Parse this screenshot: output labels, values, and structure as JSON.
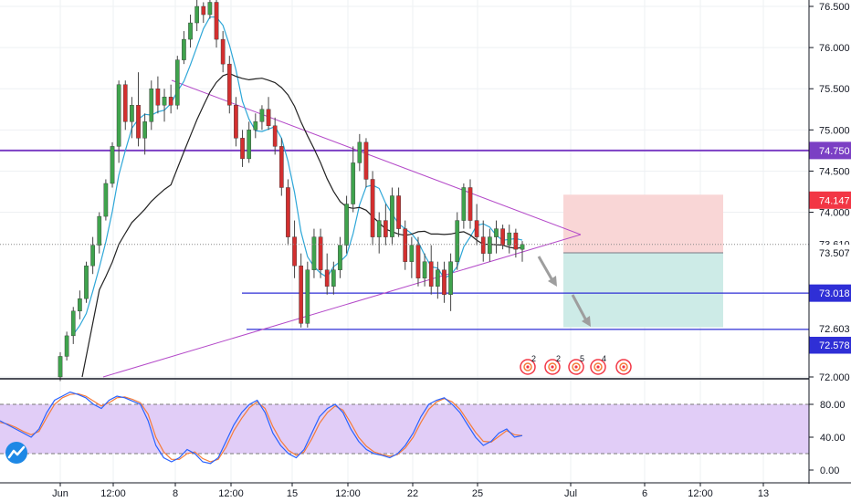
{
  "chart_data": {
    "type": "candlestick",
    "price_axis": {
      "ticks": [
        "76.500",
        "76.000",
        "75.500",
        "75.000",
        "74.500",
        "74.000",
        "72.000"
      ],
      "ylim": [
        71.95,
        76.6
      ]
    },
    "time_axis": {
      "labels": [
        "Jun",
        "12:00",
        "8",
        "12:00",
        "15",
        "12:00",
        "22",
        "25",
        "Jul",
        "6",
        "12:00",
        "13"
      ]
    },
    "horizontal_levels": [
      {
        "value": 74.75,
        "label": "74.750",
        "color": "#7b3fc4"
      },
      {
        "value": 73.018,
        "label": "73.018",
        "color": "#2f2fd6"
      },
      {
        "value": 72.578,
        "label": "72.578",
        "color": "#2f2fd6"
      }
    ],
    "price_tags": [
      {
        "value": 74.147,
        "label": "74.147",
        "color": "#f23645"
      },
      {
        "value": 73.61,
        "label": "73.610",
        "color": "#ffffff",
        "text_color": "#131722"
      },
      {
        "value": 73.507,
        "label": "73.507",
        "color": "#ffffff",
        "text_color": "#131722"
      },
      {
        "value": 72.603,
        "label": "72.603",
        "color": "#ffffff",
        "text_color": "#131722"
      }
    ],
    "risk_reward": {
      "entry": 73.507,
      "stop": 74.147,
      "target": 72.603,
      "stop_color": "#f9d6d6",
      "target_color": "#cdebe7"
    },
    "triangle": {
      "upper_trendline": [
        [
          75.62,
          0
        ],
        [
          73.72,
          1
        ]
      ],
      "lower_trendline": [
        [
          72.0,
          0
        ],
        [
          73.72,
          1
        ]
      ]
    },
    "candles": [
      [
        72.0,
        72.3,
        71.95,
        72.25
      ],
      [
        72.25,
        72.55,
        72.2,
        72.5
      ],
      [
        72.5,
        72.85,
        72.4,
        72.8
      ],
      [
        72.8,
        73.05,
        72.7,
        72.95
      ],
      [
        72.95,
        73.4,
        72.9,
        73.35
      ],
      [
        73.35,
        73.7,
        73.25,
        73.6
      ],
      [
        73.6,
        74.0,
        73.5,
        73.95
      ],
      [
        73.95,
        74.4,
        73.9,
        74.35
      ],
      [
        74.35,
        74.85,
        74.3,
        74.8
      ],
      [
        74.8,
        75.6,
        74.6,
        75.55
      ],
      [
        75.55,
        75.6,
        75.0,
        75.1
      ],
      [
        75.1,
        75.4,
        74.9,
        75.3
      ],
      [
        75.3,
        75.7,
        74.8,
        74.9
      ],
      [
        74.9,
        75.2,
        74.7,
        75.1
      ],
      [
        75.1,
        75.6,
        75.0,
        75.5
      ],
      [
        75.5,
        75.65,
        75.2,
        75.3
      ],
      [
        75.3,
        75.5,
        75.1,
        75.4
      ],
      [
        75.4,
        75.55,
        75.2,
        75.3
      ],
      [
        75.3,
        75.9,
        75.25,
        75.85
      ],
      [
        75.85,
        76.2,
        75.8,
        76.1
      ],
      [
        76.1,
        76.4,
        76.0,
        76.3
      ],
      [
        76.3,
        76.6,
        76.2,
        76.5
      ],
      [
        76.5,
        76.55,
        76.3,
        76.4
      ],
      [
        76.4,
        76.6,
        76.35,
        76.55
      ],
      [
        76.55,
        76.6,
        76.0,
        76.1
      ],
      [
        76.1,
        76.2,
        75.7,
        75.8
      ],
      [
        75.8,
        75.9,
        75.2,
        75.3
      ],
      [
        75.3,
        75.4,
        74.8,
        74.9
      ],
      [
        74.9,
        75.0,
        74.55,
        74.65
      ],
      [
        74.65,
        75.1,
        74.6,
        75.0
      ],
      [
        75.0,
        75.2,
        74.9,
        75.1
      ],
      [
        75.1,
        75.3,
        75.0,
        75.25
      ],
      [
        75.25,
        75.4,
        75.0,
        75.05
      ],
      [
        75.05,
        75.15,
        74.7,
        74.8
      ],
      [
        74.8,
        74.9,
        74.2,
        74.3
      ],
      [
        74.3,
        74.4,
        73.6,
        73.7
      ],
      [
        73.7,
        73.9,
        73.2,
        73.35
      ],
      [
        73.35,
        73.5,
        72.6,
        72.65
      ],
      [
        72.65,
        73.4,
        72.6,
        73.3
      ],
      [
        73.3,
        73.8,
        73.2,
        73.7
      ],
      [
        73.7,
        73.8,
        73.2,
        73.3
      ],
      [
        73.3,
        73.5,
        73.0,
        73.1
      ],
      [
        73.1,
        73.4,
        73.0,
        73.3
      ],
      [
        73.3,
        73.7,
        73.2,
        73.6
      ],
      [
        73.6,
        74.2,
        73.5,
        74.1
      ],
      [
        74.1,
        74.8,
        74.0,
        74.6
      ],
      [
        74.6,
        74.95,
        74.5,
        74.85
      ],
      [
        74.85,
        74.9,
        74.3,
        74.4
      ],
      [
        74.4,
        74.5,
        73.6,
        73.7
      ],
      [
        73.7,
        74.0,
        73.5,
        73.9
      ],
      [
        73.9,
        74.1,
        73.6,
        73.7
      ],
      [
        73.7,
        74.3,
        73.6,
        74.2
      ],
      [
        74.2,
        74.3,
        73.7,
        73.8
      ],
      [
        73.8,
        73.9,
        73.3,
        73.4
      ],
      [
        73.4,
        73.7,
        73.2,
        73.6
      ],
      [
        73.6,
        73.7,
        73.1,
        73.2
      ],
      [
        73.2,
        73.5,
        73.1,
        73.4
      ],
      [
        73.4,
        73.6,
        73.0,
        73.1
      ],
      [
        73.1,
        73.4,
        72.95,
        73.3
      ],
      [
        73.3,
        73.4,
        72.9,
        73.0
      ],
      [
        73.0,
        73.5,
        72.8,
        73.4
      ],
      [
        73.4,
        74.0,
        73.3,
        73.9
      ],
      [
        73.9,
        74.35,
        73.8,
        74.3
      ],
      [
        74.3,
        74.4,
        73.8,
        73.9
      ],
      [
        73.9,
        74.1,
        73.6,
        73.7
      ],
      [
        73.7,
        73.9,
        73.4,
        73.5
      ],
      [
        73.5,
        73.8,
        73.4,
        73.7
      ],
      [
        73.7,
        73.9,
        73.5,
        73.8
      ],
      [
        73.8,
        73.85,
        73.55,
        73.6
      ],
      [
        73.6,
        73.85,
        73.5,
        73.75
      ],
      [
        73.75,
        73.8,
        73.45,
        73.55
      ],
      [
        73.55,
        73.65,
        73.4,
        73.61
      ]
    ],
    "oscillator": {
      "ticks": [
        "80.00",
        "40.00",
        "0.00"
      ],
      "upper_band": 80,
      "lower_band": 20,
      "k": [
        60,
        55,
        50,
        45,
        40,
        50,
        70,
        85,
        90,
        95,
        92,
        88,
        80,
        75,
        85,
        90,
        88,
        84,
        80,
        60,
        30,
        15,
        10,
        15,
        25,
        20,
        10,
        8,
        15,
        35,
        55,
        70,
        80,
        85,
        70,
        45,
        30,
        20,
        15,
        25,
        45,
        65,
        75,
        80,
        70,
        50,
        35,
        25,
        20,
        18,
        15,
        20,
        30,
        45,
        65,
        80,
        85,
        88,
        80,
        70,
        55,
        40,
        30,
        35,
        45,
        50,
        40,
        42
      ],
      "d": [
        58,
        56,
        52,
        47,
        43,
        47,
        64,
        80,
        88,
        92,
        93,
        90,
        84,
        78,
        82,
        88,
        89,
        86,
        82,
        68,
        40,
        22,
        13,
        13,
        20,
        22,
        14,
        10,
        13,
        28,
        48,
        63,
        76,
        83,
        75,
        53,
        36,
        24,
        18,
        22,
        38,
        57,
        70,
        78,
        73,
        57,
        40,
        29,
        22,
        19,
        17,
        19,
        27,
        40,
        58,
        74,
        83,
        87,
        83,
        74,
        60,
        46,
        35,
        34,
        41,
        48,
        43,
        42
      ]
    },
    "event_markers": [
      {
        "count": "2"
      },
      {
        "count": "2"
      },
      {
        "count": "5"
      },
      {
        "count": "4"
      },
      {
        "count": ""
      }
    ]
  }
}
